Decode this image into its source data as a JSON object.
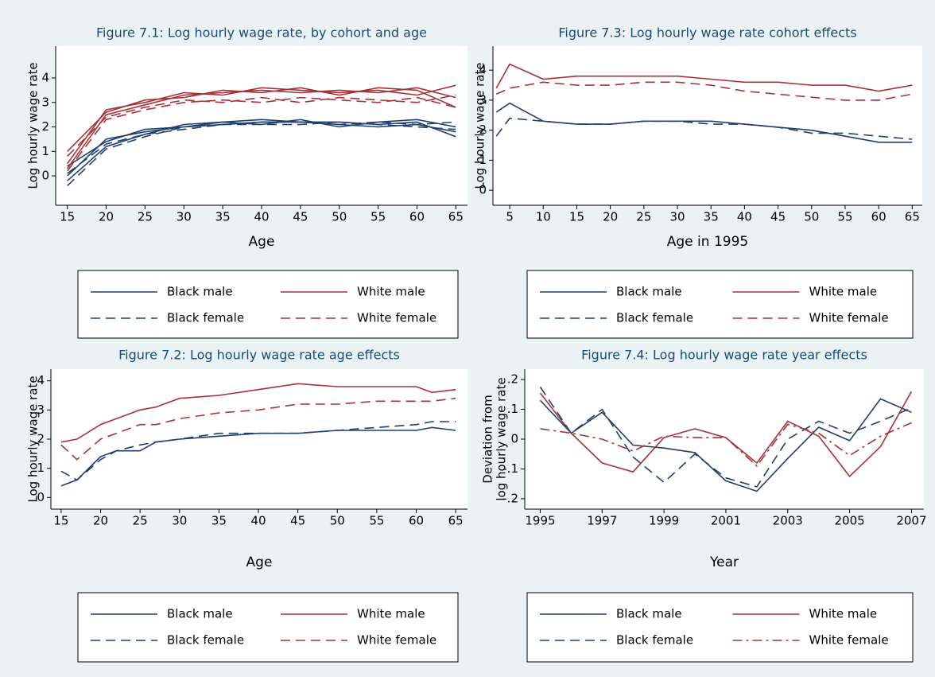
{
  "chart_data": [
    {
      "type": "line",
      "title": "Figure 7.1: Log hourly wage rate, by cohort and age",
      "xlabel": "Age",
      "ylabel": "Log hourly wage rate",
      "x": [
        15,
        20,
        25,
        30,
        35,
        40,
        45,
        50,
        55,
        60,
        65
      ],
      "xlim": [
        13.5,
        66.5
      ],
      "xticks": [
        15,
        20,
        25,
        30,
        35,
        40,
        45,
        50,
        55,
        60,
        65
      ],
      "ylim": [
        -1.2,
        5.3
      ],
      "yticks": [
        0,
        1,
        2,
        3,
        4
      ],
      "series": [
        {
          "name": "Black male",
          "color": "#1f3f6e",
          "style": "solid",
          "lines": [
            [
              0.0,
              1.5,
              1.8,
              2.0,
              2.1,
              2.2,
              2.2,
              2.1,
              2.0,
              2.1,
              1.8
            ],
            [
              -0.2,
              1.2,
              1.7,
              2.1,
              2.2,
              2.3,
              2.2,
              2.2,
              2.1,
              2.2,
              1.6
            ],
            [
              0.4,
              1.4,
              1.9,
              2.0,
              2.2,
              2.1,
              2.3,
              2.0,
              2.2,
              2.3,
              2.0
            ]
          ]
        },
        {
          "name": "White male",
          "color": "#a63238",
          "style": "solid",
          "lines": [
            [
              0.3,
              2.5,
              2.9,
              3.3,
              3.4,
              3.5,
              3.4,
              3.5,
              3.4,
              3.6,
              3.2
            ],
            [
              1.0,
              2.6,
              3.1,
              3.2,
              3.5,
              3.4,
              3.6,
              3.3,
              3.6,
              3.5,
              2.8
            ],
            [
              0.5,
              2.7,
              3.0,
              3.4,
              3.3,
              3.6,
              3.5,
              3.4,
              3.5,
              3.3,
              3.7
            ]
          ]
        },
        {
          "name": "Black female",
          "color": "#1f3f6e",
          "style": "dash",
          "lines": [
            [
              0.1,
              1.3,
              1.7,
              1.9,
              2.1,
              2.1,
              2.1,
              2.2,
              2.1,
              2.0,
              1.9
            ],
            [
              -0.4,
              1.1,
              1.6,
              2.0,
              2.1,
              2.2,
              2.2,
              2.1,
              2.2,
              2.1,
              2.2
            ]
          ]
        },
        {
          "name": "White female",
          "color": "#a63238",
          "style": "dash",
          "lines": [
            [
              0.2,
              2.3,
              2.7,
              3.0,
              3.1,
              3.0,
              3.2,
              3.1,
              3.0,
              3.2,
              2.8
            ],
            [
              0.8,
              2.4,
              2.8,
              3.1,
              3.0,
              3.2,
              3.0,
              3.2,
              3.1,
              3.0,
              3.3
            ]
          ]
        }
      ]
    },
    {
      "type": "line",
      "title": "Figure 7.3: Log hourly wage rate cohort effects",
      "xlabel": "Age in 1995",
      "ylabel": "Log hourly wage rate",
      "x": [
        3,
        5,
        10,
        15,
        20,
        25,
        30,
        35,
        40,
        45,
        50,
        55,
        60,
        65
      ],
      "xlim": [
        2.5,
        66.5
      ],
      "xticks": [
        5,
        10,
        15,
        20,
        25,
        30,
        35,
        40,
        45,
        50,
        55,
        60,
        65
      ],
      "ylim": [
        -0.5,
        4.8
      ],
      "yticks": [
        0,
        1,
        2,
        3,
        4
      ],
      "series": [
        {
          "name": "Black male",
          "color": "#1f3f6e",
          "style": "solid",
          "values": [
            2.6,
            2.9,
            2.3,
            2.2,
            2.2,
            2.3,
            2.3,
            2.3,
            2.2,
            2.1,
            2.0,
            1.8,
            1.6,
            1.6
          ]
        },
        {
          "name": "White male",
          "color": "#a63238",
          "style": "solid",
          "values": [
            3.4,
            4.2,
            3.7,
            3.8,
            3.8,
            3.8,
            3.8,
            3.7,
            3.6,
            3.6,
            3.5,
            3.5,
            3.3,
            3.5
          ]
        },
        {
          "name": "Black female",
          "color": "#1f3f6e",
          "style": "dash",
          "values": [
            1.8,
            2.4,
            2.3,
            2.2,
            2.2,
            2.3,
            2.3,
            2.2,
            2.2,
            2.1,
            1.9,
            1.9,
            1.8,
            1.7
          ]
        },
        {
          "name": "White female",
          "color": "#a63238",
          "style": "dash",
          "values": [
            3.2,
            3.4,
            3.6,
            3.5,
            3.5,
            3.6,
            3.6,
            3.5,
            3.3,
            3.2,
            3.1,
            3.0,
            3.0,
            3.2
          ]
        }
      ]
    },
    {
      "type": "line",
      "title": "Figure 7.2: Log hourly wage rate age effects",
      "xlabel": "Age",
      "ylabel": "Log hourly wage rate",
      "x": [
        15,
        17,
        20,
        22,
        25,
        27,
        30,
        35,
        40,
        45,
        50,
        55,
        60,
        62,
        65
      ],
      "xlim": [
        13.7,
        66.5
      ],
      "xticks": [
        15,
        20,
        25,
        30,
        35,
        40,
        45,
        50,
        55,
        60,
        65
      ],
      "ylim": [
        -0.4,
        4.4
      ],
      "yticks": [
        0,
        1,
        2,
        3,
        4
      ],
      "series": [
        {
          "name": "Black male",
          "color": "#1f3f6e",
          "style": "solid",
          "values": [
            0.4,
            0.6,
            1.4,
            1.6,
            1.6,
            1.9,
            2.0,
            2.1,
            2.2,
            2.2,
            2.3,
            2.3,
            2.3,
            2.4,
            2.3
          ]
        },
        {
          "name": "White male",
          "color": "#a63238",
          "style": "solid",
          "values": [
            1.9,
            2.0,
            2.5,
            2.7,
            3.0,
            3.1,
            3.4,
            3.5,
            3.7,
            3.9,
            3.8,
            3.8,
            3.8,
            3.6,
            3.7
          ]
        },
        {
          "name": "Black female",
          "color": "#1f3f6e",
          "style": "dash",
          "values": [
            0.9,
            0.6,
            1.3,
            1.6,
            1.8,
            1.9,
            2.0,
            2.2,
            2.2,
            2.2,
            2.3,
            2.4,
            2.5,
            2.6,
            2.6
          ]
        },
        {
          "name": "White female",
          "color": "#a63238",
          "style": "dash",
          "values": [
            1.8,
            1.3,
            2.0,
            2.2,
            2.5,
            2.5,
            2.7,
            2.9,
            3.0,
            3.2,
            3.2,
            3.3,
            3.3,
            3.3,
            3.4
          ]
        }
      ]
    },
    {
      "type": "line",
      "title": "Figure 7.4: Log hourly wage rate year effects",
      "xlabel": "Year",
      "ylabel": [
        "Deviation from",
        "log hourly wage rate"
      ],
      "x": [
        1995,
        1996,
        1997,
        1998,
        1999,
        2000,
        2001,
        2002,
        2003,
        2004,
        2005,
        2006,
        2007
      ],
      "xlim": [
        1994.5,
        2007.4
      ],
      "xticks": [
        1995,
        1997,
        1999,
        2001,
        2003,
        2005,
        2007
      ],
      "ylim": [
        -0.235,
        0.235
      ],
      "yticks": [
        {
          "value": 0.2,
          "label": ".2"
        },
        {
          "value": 0.1,
          "label": ".1"
        },
        0,
        {
          "value": -0.1,
          "label": "-.1"
        },
        {
          "value": -0.2,
          "label": "-.2"
        }
      ],
      "series": [
        {
          "name": "Black male",
          "color": "#1f3f6e",
          "style": "solid",
          "values": [
            0.13,
            0.02,
            0.09,
            -0.02,
            -0.03,
            -0.045,
            -0.14,
            -0.175,
            -0.065,
            0.04,
            -0.005,
            0.135,
            0.09
          ]
        },
        {
          "name": "White male",
          "color": "#a63238",
          "style": "solid",
          "values": [
            0.155,
            0.02,
            -0.08,
            -0.11,
            0.005,
            0.035,
            0.005,
            -0.08,
            0.06,
            0.01,
            -0.125,
            -0.025,
            0.16
          ]
        },
        {
          "name": "Black female",
          "color": "#1f3f6e",
          "style": "dash",
          "values": [
            0.175,
            0.02,
            0.1,
            -0.06,
            -0.145,
            -0.05,
            -0.13,
            -0.16,
            0.0,
            0.06,
            0.02,
            0.06,
            0.105
          ]
        },
        {
          "name": "White female",
          "color": "#a63238",
          "style": "dashdot",
          "values": [
            0.035,
            0.02,
            0.0,
            -0.04,
            0.01,
            0.005,
            0.005,
            -0.09,
            0.05,
            0.02,
            -0.055,
            0.01,
            0.055
          ]
        }
      ]
    }
  ]
}
